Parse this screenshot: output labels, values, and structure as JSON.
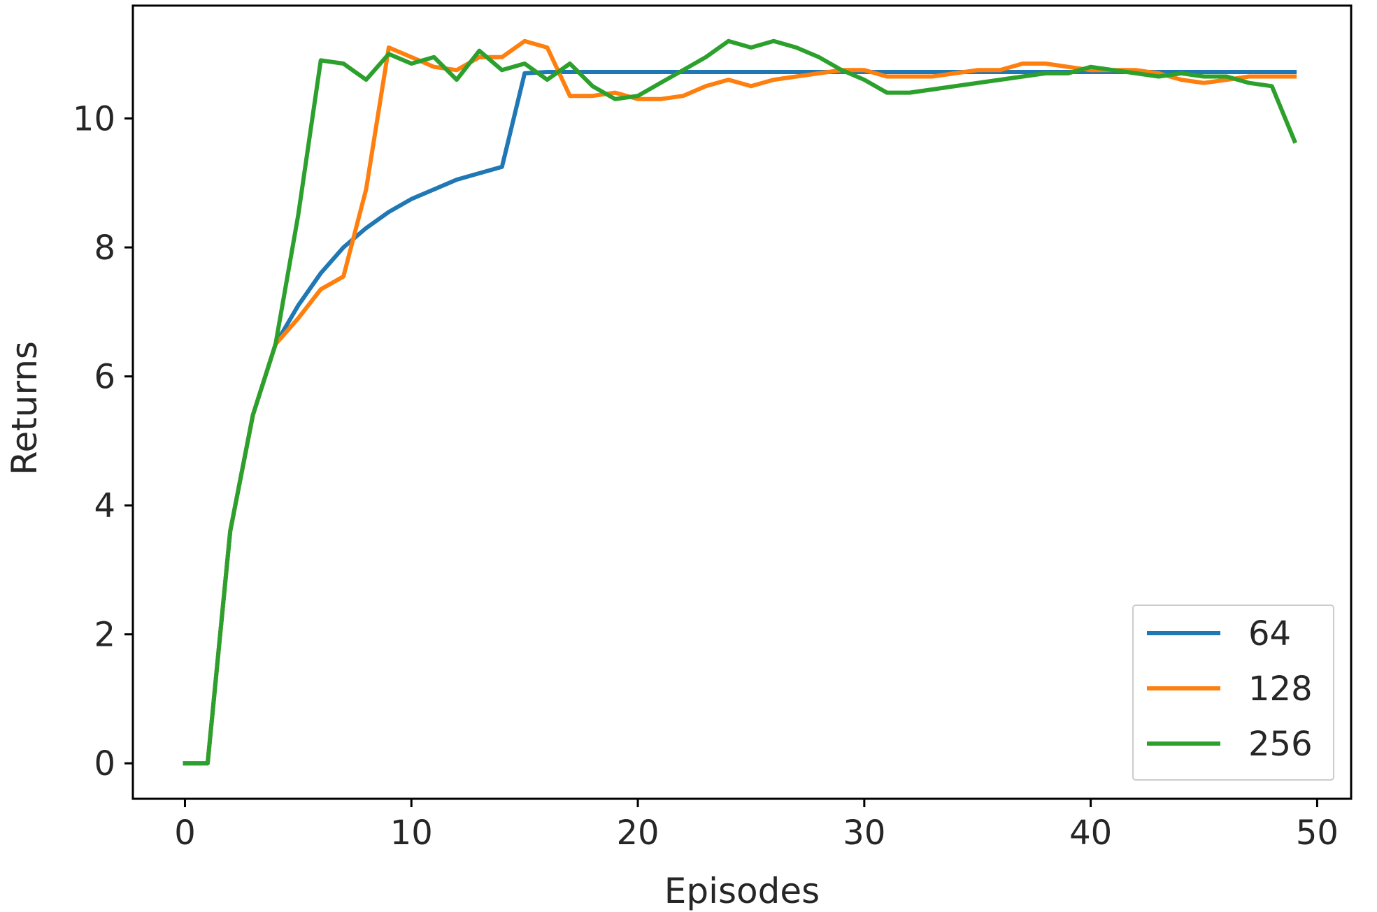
{
  "chart_data": {
    "type": "line",
    "xlabel": "Episodes",
    "ylabel": "Returns",
    "xlim": [
      -2.3,
      51.5
    ],
    "ylim": [
      -0.55,
      11.75
    ],
    "xticks": [
      0,
      10,
      20,
      30,
      40,
      50
    ],
    "yticks": [
      0,
      2,
      4,
      6,
      8,
      10
    ],
    "grid": false,
    "legend_position": "bottom-right",
    "x": [
      0,
      1,
      2,
      3,
      4,
      5,
      6,
      7,
      8,
      9,
      10,
      11,
      12,
      13,
      14,
      15,
      16,
      17,
      18,
      19,
      20,
      21,
      22,
      23,
      24,
      25,
      26,
      27,
      28,
      29,
      30,
      31,
      32,
      33,
      34,
      35,
      36,
      37,
      38,
      39,
      40,
      41,
      42,
      43,
      44,
      45,
      46,
      47,
      48,
      49
    ],
    "series": [
      {
        "name": "64",
        "color": "#1f77b4",
        "values": [
          0.0,
          0.0,
          3.6,
          5.4,
          6.5,
          7.1,
          7.6,
          8.0,
          8.3,
          8.55,
          8.75,
          8.9,
          9.05,
          9.15,
          9.25,
          10.7,
          10.72,
          10.72,
          10.72,
          10.72,
          10.72,
          10.72,
          10.72,
          10.72,
          10.72,
          10.72,
          10.72,
          10.72,
          10.72,
          10.72,
          10.72,
          10.72,
          10.72,
          10.72,
          10.72,
          10.72,
          10.72,
          10.72,
          10.72,
          10.72,
          10.72,
          10.72,
          10.72,
          10.72,
          10.72,
          10.72,
          10.72,
          10.72,
          10.72,
          10.72
        ]
      },
      {
        "name": "128",
        "color": "#ff7f0e",
        "values": [
          0.0,
          0.0,
          3.6,
          5.4,
          6.5,
          6.9,
          7.35,
          7.55,
          8.9,
          11.1,
          10.95,
          10.8,
          10.75,
          10.95,
          10.95,
          11.2,
          11.1,
          10.35,
          10.35,
          10.4,
          10.3,
          10.3,
          10.35,
          10.5,
          10.6,
          10.5,
          10.6,
          10.65,
          10.7,
          10.75,
          10.75,
          10.65,
          10.65,
          10.65,
          10.7,
          10.75,
          10.75,
          10.85,
          10.85,
          10.8,
          10.75,
          10.75,
          10.75,
          10.7,
          10.6,
          10.55,
          10.6,
          10.65,
          10.65,
          10.65
        ]
      },
      {
        "name": "256",
        "color": "#2ca02c",
        "values": [
          0.0,
          0.0,
          3.6,
          5.4,
          6.5,
          8.5,
          10.9,
          10.85,
          10.6,
          11.0,
          10.85,
          10.95,
          10.6,
          11.05,
          10.75,
          10.85,
          10.6,
          10.85,
          10.5,
          10.3,
          10.35,
          10.55,
          10.75,
          10.95,
          11.2,
          11.1,
          11.2,
          11.1,
          10.95,
          10.75,
          10.6,
          10.4,
          10.4,
          10.45,
          10.5,
          10.55,
          10.6,
          10.65,
          10.7,
          10.7,
          10.8,
          10.75,
          10.7,
          10.65,
          10.7,
          10.65,
          10.65,
          10.55,
          10.5,
          9.65
        ]
      }
    ]
  }
}
